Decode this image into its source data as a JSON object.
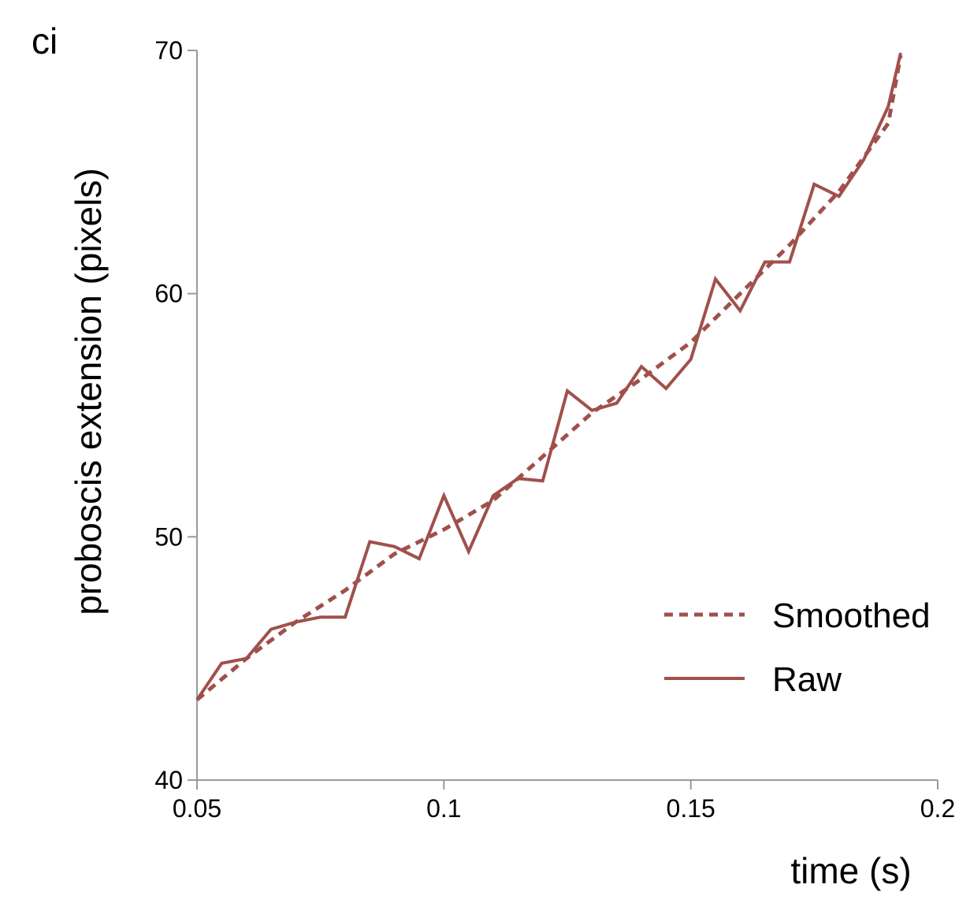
{
  "chart_data": {
    "type": "line",
    "panel_label": "ci",
    "xlabel": "time (s)",
    "ylabel": "proboscis extension (pixels)",
    "xlim": [
      0.05,
      0.2
    ],
    "ylim": [
      40,
      70
    ],
    "xticks": [
      0.05,
      0.1,
      0.15,
      0.2
    ],
    "xtick_labels": [
      "0.05",
      "0.1",
      "0.15",
      "0.2"
    ],
    "yticks": [
      40,
      50,
      60,
      70
    ],
    "ytick_labels": [
      "40",
      "50",
      "60",
      "70"
    ],
    "grid": false,
    "legend_position": "bottom-right",
    "series": [
      {
        "name": "Smoothed",
        "style": "dashed",
        "color": "#a0504b",
        "x": [
          0.05,
          0.06,
          0.07,
          0.08,
          0.09,
          0.1,
          0.11,
          0.12,
          0.13,
          0.14,
          0.15,
          0.16,
          0.17,
          0.18,
          0.19,
          0.1925
        ],
        "y": [
          43.3,
          45.0,
          46.5,
          47.8,
          49.3,
          50.3,
          51.5,
          53.3,
          55.1,
          56.5,
          58.0,
          60.0,
          62.0,
          64.2,
          67.0,
          69.8
        ]
      },
      {
        "name": "Raw",
        "style": "solid",
        "color": "#a0504b",
        "x": [
          0.05,
          0.055,
          0.06,
          0.065,
          0.07,
          0.075,
          0.08,
          0.085,
          0.09,
          0.095,
          0.1,
          0.105,
          0.11,
          0.115,
          0.12,
          0.125,
          0.13,
          0.135,
          0.14,
          0.145,
          0.15,
          0.155,
          0.16,
          0.165,
          0.17,
          0.175,
          0.18,
          0.185,
          0.19,
          0.1925
        ],
        "y": [
          43.3,
          44.8,
          45.0,
          46.2,
          46.5,
          46.7,
          46.7,
          49.8,
          49.6,
          49.1,
          51.7,
          49.4,
          51.7,
          52.4,
          52.3,
          56.0,
          55.2,
          55.5,
          57.0,
          56.1,
          57.3,
          60.6,
          59.3,
          61.3,
          61.3,
          64.5,
          64.0,
          65.5,
          67.7,
          69.9
        ]
      }
    ]
  }
}
